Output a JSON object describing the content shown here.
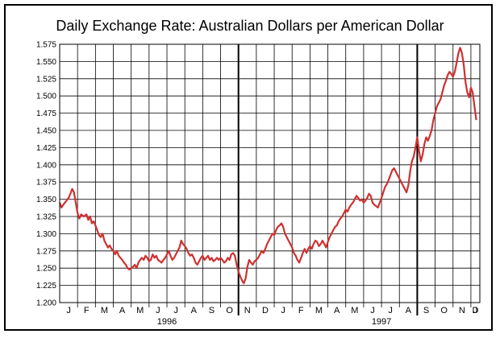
{
  "chart_data": {
    "type": "line",
    "title": "Daily Exchange Rate: Australian Dollars per American Dollar",
    "xlabel": "",
    "ylabel": "",
    "ylim": [
      1.2,
      1.575
    ],
    "y_ticks": [
      "1.200",
      "1.225",
      "1.250",
      "1.275",
      "1.300",
      "1.325",
      "1.350",
      "1.375",
      "1.400",
      "1.425",
      "1.450",
      "1.475",
      "1.500",
      "1.525",
      "1.550",
      "1.575"
    ],
    "month_labels": [
      "J",
      "F",
      "M",
      "A",
      "M",
      "J",
      "J",
      "A",
      "S",
      "O",
      "N",
      "D",
      "J",
      "F",
      "M",
      "A",
      "M",
      "J",
      "J",
      "A",
      "S",
      "O",
      "N",
      "D",
      "J"
    ],
    "year_labels": [
      {
        "label": "1996",
        "month_index": 6
      },
      {
        "label": "1997",
        "month_index": 18
      }
    ],
    "year_boundaries_after_month_index": [
      9.5,
      19.5
    ],
    "grid": true,
    "series": [
      {
        "color": "#d03030",
        "points": [
          [
            0.0,
            1.345
          ],
          [
            0.1,
            1.338
          ],
          [
            0.2,
            1.342
          ],
          [
            0.35,
            1.347
          ],
          [
            0.5,
            1.352
          ],
          [
            0.6,
            1.358
          ],
          [
            0.7,
            1.365
          ],
          [
            0.8,
            1.36
          ],
          [
            0.9,
            1.345
          ],
          [
            1.0,
            1.33
          ],
          [
            1.1,
            1.322
          ],
          [
            1.2,
            1.328
          ],
          [
            1.35,
            1.325
          ],
          [
            1.5,
            1.328
          ],
          [
            1.6,
            1.32
          ],
          [
            1.7,
            1.325
          ],
          [
            1.8,
            1.315
          ],
          [
            1.9,
            1.318
          ],
          [
            2.0,
            1.312
          ],
          [
            2.1,
            1.305
          ],
          [
            2.2,
            1.298
          ],
          [
            2.3,
            1.295
          ],
          [
            2.4,
            1.3
          ],
          [
            2.5,
            1.29
          ],
          [
            2.6,
            1.285
          ],
          [
            2.7,
            1.28
          ],
          [
            2.8,
            1.283
          ],
          [
            2.9,
            1.278
          ],
          [
            3.0,
            1.275
          ],
          [
            3.1,
            1.27
          ],
          [
            3.2,
            1.275
          ],
          [
            3.3,
            1.268
          ],
          [
            3.4,
            1.265
          ],
          [
            3.5,
            1.262
          ],
          [
            3.6,
            1.258
          ],
          [
            3.7,
            1.255
          ],
          [
            3.8,
            1.25
          ],
          [
            3.9,
            1.248
          ],
          [
            4.0,
            1.25
          ],
          [
            4.1,
            1.252
          ],
          [
            4.2,
            1.255
          ],
          [
            4.3,
            1.25
          ],
          [
            4.4,
            1.258
          ],
          [
            4.5,
            1.262
          ],
          [
            4.6,
            1.265
          ],
          [
            4.7,
            1.262
          ],
          [
            4.8,
            1.268
          ],
          [
            4.9,
            1.265
          ],
          [
            5.0,
            1.26
          ],
          [
            5.1,
            1.262
          ],
          [
            5.2,
            1.27
          ],
          [
            5.3,
            1.265
          ],
          [
            5.4,
            1.268
          ],
          [
            5.5,
            1.262
          ],
          [
            5.6,
            1.26
          ],
          [
            5.7,
            1.258
          ],
          [
            5.8,
            1.262
          ],
          [
            5.9,
            1.265
          ],
          [
            6.0,
            1.27
          ],
          [
            6.1,
            1.275
          ],
          [
            6.2,
            1.268
          ],
          [
            6.3,
            1.262
          ],
          [
            6.4,
            1.265
          ],
          [
            6.5,
            1.27
          ],
          [
            6.6,
            1.275
          ],
          [
            6.7,
            1.28
          ],
          [
            6.8,
            1.29
          ],
          [
            6.9,
            1.285
          ],
          [
            7.0,
            1.282
          ],
          [
            7.1,
            1.278
          ],
          [
            7.2,
            1.272
          ],
          [
            7.3,
            1.268
          ],
          [
            7.4,
            1.27
          ],
          [
            7.5,
            1.265
          ],
          [
            7.6,
            1.258
          ],
          [
            7.7,
            1.255
          ],
          [
            7.8,
            1.26
          ],
          [
            7.9,
            1.265
          ],
          [
            8.0,
            1.268
          ],
          [
            8.1,
            1.262
          ],
          [
            8.2,
            1.265
          ],
          [
            8.3,
            1.268
          ],
          [
            8.4,
            1.262
          ],
          [
            8.5,
            1.265
          ],
          [
            8.6,
            1.26
          ],
          [
            8.7,
            1.262
          ],
          [
            8.8,
            1.265
          ],
          [
            8.9,
            1.262
          ],
          [
            9.0,
            1.265
          ],
          [
            9.1,
            1.262
          ],
          [
            9.2,
            1.258
          ],
          [
            9.3,
            1.26
          ],
          [
            9.4,
            1.265
          ],
          [
            9.5,
            1.262
          ],
          [
            9.6,
            1.27
          ],
          [
            9.7,
            1.272
          ],
          [
            9.8,
            1.268
          ],
          [
            9.9,
            1.255
          ],
          [
            10.0,
            1.245
          ],
          [
            10.1,
            1.238
          ],
          [
            10.2,
            1.232
          ],
          [
            10.3,
            1.228
          ],
          [
            10.4,
            1.235
          ],
          [
            10.5,
            1.252
          ],
          [
            10.6,
            1.262
          ],
          [
            10.7,
            1.258
          ],
          [
            10.8,
            1.255
          ],
          [
            10.9,
            1.26
          ],
          [
            11.0,
            1.262
          ],
          [
            11.1,
            1.265
          ],
          [
            11.2,
            1.27
          ],
          [
            11.3,
            1.275
          ],
          [
            11.4,
            1.272
          ],
          [
            11.5,
            1.278
          ],
          [
            11.6,
            1.285
          ],
          [
            11.7,
            1.29
          ],
          [
            11.8,
            1.295
          ],
          [
            11.9,
            1.3
          ],
          [
            12.0,
            1.298
          ],
          [
            12.1,
            1.305
          ],
          [
            12.2,
            1.31
          ],
          [
            12.3,
            1.312
          ],
          [
            12.4,
            1.315
          ],
          [
            12.5,
            1.31
          ],
          [
            12.6,
            1.3
          ],
          [
            12.7,
            1.295
          ],
          [
            12.8,
            1.29
          ],
          [
            12.9,
            1.285
          ],
          [
            13.0,
            1.28
          ],
          [
            13.1,
            1.272
          ],
          [
            13.2,
            1.268
          ],
          [
            13.3,
            1.262
          ],
          [
            13.4,
            1.258
          ],
          [
            13.5,
            1.265
          ],
          [
            13.6,
            1.272
          ],
          [
            13.7,
            1.278
          ],
          [
            13.8,
            1.272
          ],
          [
            13.9,
            1.278
          ],
          [
            14.0,
            1.282
          ],
          [
            14.1,
            1.278
          ],
          [
            14.2,
            1.285
          ],
          [
            14.3,
            1.29
          ],
          [
            14.4,
            1.288
          ],
          [
            14.5,
            1.282
          ],
          [
            14.6,
            1.285
          ],
          [
            14.7,
            1.29
          ],
          [
            14.8,
            1.285
          ],
          [
            14.9,
            1.28
          ],
          [
            15.0,
            1.288
          ],
          [
            15.1,
            1.295
          ],
          [
            15.2,
            1.3
          ],
          [
            15.3,
            1.305
          ],
          [
            15.4,
            1.31
          ],
          [
            15.5,
            1.312
          ],
          [
            15.6,
            1.318
          ],
          [
            15.7,
            1.322
          ],
          [
            15.8,
            1.325
          ],
          [
            15.9,
            1.33
          ],
          [
            16.0,
            1.335
          ],
          [
            16.1,
            1.332
          ],
          [
            16.2,
            1.338
          ],
          [
            16.3,
            1.342
          ],
          [
            16.4,
            1.345
          ],
          [
            16.5,
            1.35
          ],
          [
            16.6,
            1.355
          ],
          [
            16.7,
            1.352
          ],
          [
            16.8,
            1.348
          ],
          [
            16.9,
            1.35
          ],
          [
            17.0,
            1.345
          ],
          [
            17.1,
            1.348
          ],
          [
            17.2,
            1.352
          ],
          [
            17.3,
            1.358
          ],
          [
            17.4,
            1.355
          ],
          [
            17.5,
            1.345
          ],
          [
            17.6,
            1.342
          ],
          [
            17.7,
            1.34
          ],
          [
            17.8,
            1.338
          ],
          [
            17.9,
            1.345
          ],
          [
            18.0,
            1.352
          ],
          [
            18.1,
            1.36
          ],
          [
            18.2,
            1.368
          ],
          [
            18.3,
            1.372
          ],
          [
            18.4,
            1.378
          ],
          [
            18.5,
            1.385
          ],
          [
            18.6,
            1.392
          ],
          [
            18.7,
            1.395
          ],
          [
            18.8,
            1.39
          ],
          [
            18.9,
            1.385
          ],
          [
            19.0,
            1.38
          ],
          [
            19.1,
            1.375
          ],
          [
            19.2,
            1.37
          ],
          [
            19.3,
            1.365
          ],
          [
            19.4,
            1.36
          ],
          [
            19.5,
            1.37
          ],
          [
            19.6,
            1.39
          ],
          [
            19.7,
            1.405
          ],
          [
            19.8,
            1.412
          ],
          [
            19.9,
            1.425
          ],
          [
            20.0,
            1.44
          ],
          [
            20.1,
            1.42
          ],
          [
            20.2,
            1.405
          ],
          [
            20.3,
            1.415
          ],
          [
            20.4,
            1.43
          ],
          [
            20.5,
            1.44
          ],
          [
            20.6,
            1.435
          ],
          [
            20.7,
            1.442
          ],
          [
            20.8,
            1.45
          ],
          [
            20.9,
            1.465
          ],
          [
            21.0,
            1.475
          ],
          [
            21.1,
            1.485
          ],
          [
            21.2,
            1.49
          ],
          [
            21.3,
            1.495
          ],
          [
            21.4,
            1.505
          ],
          [
            21.5,
            1.515
          ],
          [
            21.6,
            1.522
          ],
          [
            21.7,
            1.53
          ],
          [
            21.8,
            1.535
          ],
          [
            21.9,
            1.532
          ],
          [
            22.0,
            1.528
          ],
          [
            22.1,
            1.535
          ],
          [
            22.2,
            1.548
          ],
          [
            22.3,
            1.562
          ],
          [
            22.4,
            1.57
          ],
          [
            22.5,
            1.562
          ],
          [
            22.6,
            1.545
          ],
          [
            22.7,
            1.52
          ],
          [
            22.8,
            1.505
          ],
          [
            22.9,
            1.498
          ],
          [
            23.0,
            1.512
          ],
          [
            23.1,
            1.505
          ],
          [
            23.2,
            1.485
          ],
          [
            23.3,
            1.465
          ]
        ]
      }
    ]
  }
}
